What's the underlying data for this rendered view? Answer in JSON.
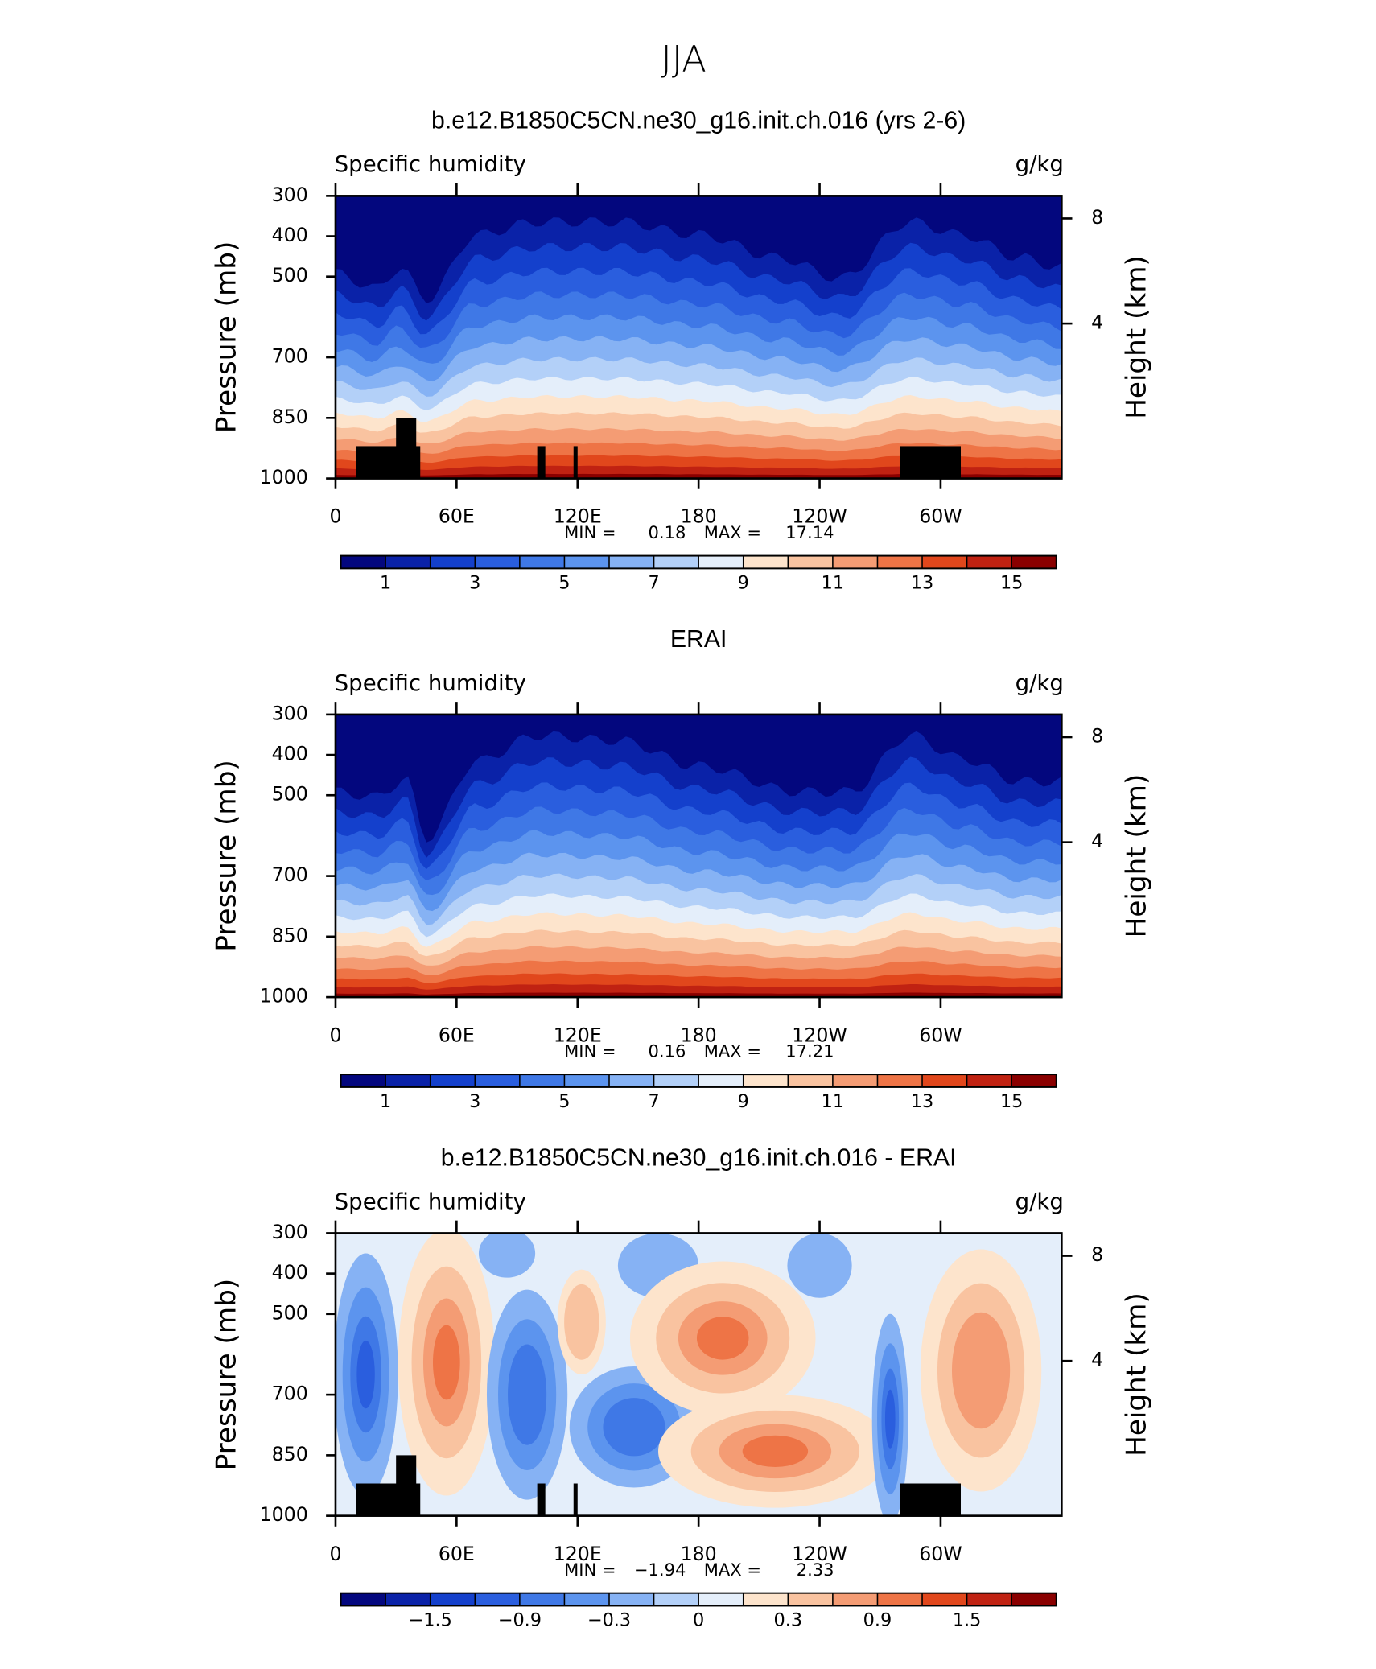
{
  "title": "JJA",
  "chart_data": [
    {
      "type": "contour",
      "title": "b.e12.B1850C5CN.ne30_g16.init.ch.016 (yrs 2-6)",
      "left_label": "Specific humidity",
      "right_label": "g/kg",
      "ylabel": "Pressure (mb)",
      "y2label": "Height (km)",
      "xlim": [
        0,
        360
      ],
      "xticks": [
        0,
        {
          "value": 60,
          "label": "60E"
        },
        {
          "value": 120,
          "label": "120E"
        },
        180,
        {
          "value": 240,
          "label": "120W"
        },
        {
          "value": 300,
          "label": "60W"
        }
      ],
      "ylim": [
        1000,
        300
      ],
      "yticks": [
        300,
        400,
        500,
        700,
        850,
        1000
      ],
      "y2ticks": [
        8,
        4
      ],
      "y2_scale": "standard-atmosphere",
      "terrain_mask": true,
      "stats": [
        {
          "label": "MIN =",
          "value": 0.18
        },
        {
          "label": "MAX =",
          "value": 17.14
        }
      ],
      "colorbar": {
        "colors": [
          "#03077e",
          "#0a22a8",
          "#1440cc",
          "#2a5ede",
          "#3f78e6",
          "#5c94ee",
          "#86b2f4",
          "#b3d0f8",
          "#e4eefa",
          "#fde4cc",
          "#f9c3a0",
          "#f49c74",
          "#ee7446",
          "#e1471c",
          "#c02212",
          "#8a0000"
        ],
        "levels": [
          1,
          2,
          3,
          4,
          5,
          6,
          7,
          8,
          9,
          10,
          11,
          12,
          13,
          14,
          15
        ],
        "ticks": [
          1,
          3,
          5,
          7,
          9,
          11,
          13,
          15
        ]
      }
    },
    {
      "type": "contour",
      "title": "ERAI",
      "left_label": "Specific humidity",
      "right_label": "g/kg",
      "ylabel": "Pressure (mb)",
      "y2label": "Height (km)",
      "xlim": [
        0,
        360
      ],
      "xticks": [
        0,
        {
          "value": 60,
          "label": "60E"
        },
        {
          "value": 120,
          "label": "120E"
        },
        180,
        {
          "value": 240,
          "label": "120W"
        },
        {
          "value": 300,
          "label": "60W"
        }
      ],
      "ylim": [
        1000,
        300
      ],
      "yticks": [
        300,
        400,
        500,
        700,
        850,
        1000
      ],
      "y2ticks": [
        8,
        4
      ],
      "y2_scale": "standard-atmosphere",
      "terrain_mask": false,
      "stats": [
        {
          "label": "MIN =",
          "value": 0.16
        },
        {
          "label": "MAX =",
          "value": 17.21
        }
      ],
      "colorbar": {
        "colors": [
          "#03077e",
          "#0a22a8",
          "#1440cc",
          "#2a5ede",
          "#3f78e6",
          "#5c94ee",
          "#86b2f4",
          "#b3d0f8",
          "#e4eefa",
          "#fde4cc",
          "#f9c3a0",
          "#f49c74",
          "#ee7446",
          "#e1471c",
          "#c02212",
          "#8a0000"
        ],
        "levels": [
          1,
          2,
          3,
          4,
          5,
          6,
          7,
          8,
          9,
          10,
          11,
          12,
          13,
          14,
          15
        ],
        "ticks": [
          1,
          3,
          5,
          7,
          9,
          11,
          13,
          15
        ]
      }
    },
    {
      "type": "contour-diff",
      "title": "b.e12.B1850C5CN.ne30_g16.init.ch.016 - ERAI",
      "left_label": "Specific humidity",
      "right_label": "g/kg",
      "ylabel": "Pressure (mb)",
      "y2label": "Height (km)",
      "xlim": [
        0,
        360
      ],
      "xticks": [
        0,
        {
          "value": 60,
          "label": "60E"
        },
        {
          "value": 120,
          "label": "120E"
        },
        180,
        {
          "value": 240,
          "label": "120W"
        },
        {
          "value": 300,
          "label": "60W"
        }
      ],
      "ylim": [
        1000,
        300
      ],
      "yticks": [
        300,
        400,
        500,
        700,
        850,
        1000
      ],
      "y2ticks": [
        8,
        4
      ],
      "y2_scale": "standard-atmosphere",
      "terrain_mask": true,
      "stats": [
        {
          "label": "MIN =",
          "value": -1.94,
          "value_label": "−1.94"
        },
        {
          "label": "MAX =",
          "value": 2.33
        }
      ],
      "colorbar": {
        "colors": [
          "#03077e",
          "#0a22a8",
          "#1440cc",
          "#2a5ede",
          "#3f78e6",
          "#5c94ee",
          "#86b2f4",
          "#b3d0f8",
          "#e4eefa",
          "#fde4cc",
          "#f9c3a0",
          "#f49c74",
          "#ee7446",
          "#e1471c",
          "#c02212",
          "#8a0000"
        ],
        "levels": [
          -1.8,
          -1.5,
          -1.2,
          -0.9,
          -0.6,
          -0.3,
          -0.1,
          0,
          0.1,
          0.3,
          0.6,
          0.9,
          1.2,
          1.5,
          1.8
        ],
        "ticks": [
          {
            "value": -1.5,
            "label": "−1.5"
          },
          {
            "value": -0.9,
            "label": "−0.9"
          },
          {
            "value": -0.3,
            "label": "−0.3"
          },
          0,
          0.3,
          0.9,
          1.5
        ]
      }
    }
  ]
}
